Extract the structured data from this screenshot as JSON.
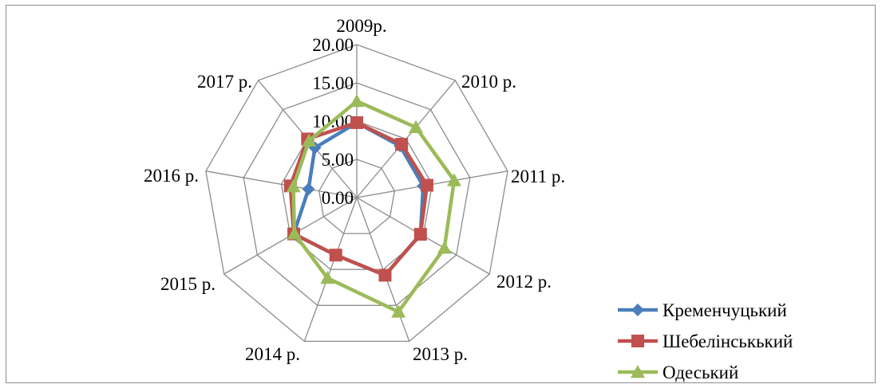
{
  "chart_data": {
    "type": "radar",
    "categories": [
      "2009р.",
      "2010 р.",
      "2011 р.",
      "2012 р.",
      "2013 р.",
      "2014 р.",
      "2015 р.",
      "2016 р.",
      "2017 р."
    ],
    "series": [
      {
        "name": "Кременчуцький",
        "color": "#4a7ebb",
        "marker": "diamond",
        "values": [
          9.8,
          8.8,
          8.8,
          9.6,
          10.8,
          8.0,
          9.5,
          6.4,
          8.5
        ]
      },
      {
        "name": "Шебелінськький",
        "color": "#c0504d",
        "marker": "square",
        "values": [
          9.8,
          9.1,
          9.3,
          9.6,
          10.8,
          8.0,
          9.5,
          8.8,
          10.0
        ]
      },
      {
        "name": "Одеський",
        "color": "#9bbb59",
        "marker": "triangle",
        "values": [
          12.6,
          12.0,
          12.9,
          13.2,
          15.9,
          11.2,
          9.4,
          8.4,
          9.7
        ]
      }
    ],
    "r_ticks": [
      "0.00",
      "5.00",
      "10.00",
      "15.00",
      "20.00"
    ],
    "r_range": [
      0,
      20
    ],
    "gridlines": true,
    "legend_position": "bottom-right"
  }
}
